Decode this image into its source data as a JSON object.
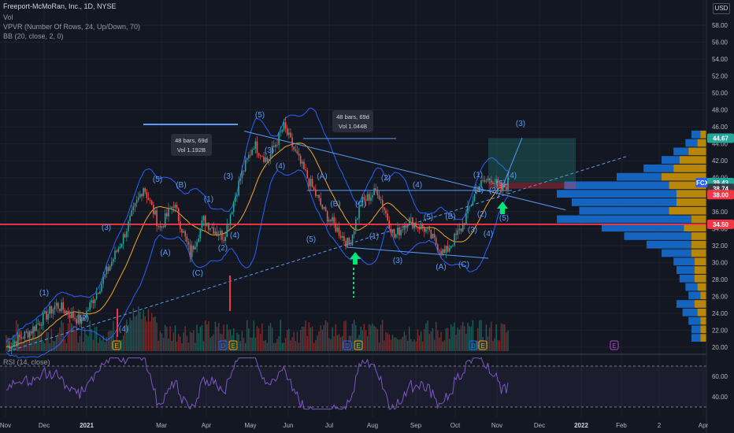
{
  "symbol_title": "Freeport-McMoRan, Inc., 1D, NYSE",
  "indicators": [
    "Vol",
    "VPVR (Number Of Rows, 24, Up/Down, 70)",
    "BB (20, close, 2, 0)"
  ],
  "rsi_label": "RSI (14, close)",
  "currency": "USD",
  "price_axis_ticks": [
    "58.00",
    "56.00",
    "54.00",
    "52.00",
    "50.00",
    "48.00",
    "46.00",
    "44.00",
    "42.00",
    "40.00",
    "38.00",
    "36.00",
    "34.00",
    "32.00",
    "30.00",
    "28.00",
    "26.00",
    "24.00",
    "22.00",
    "20.00"
  ],
  "rsi_axis_ticks": [
    "60.00",
    "40.00"
  ],
  "price_tags": [
    {
      "text": "44.67",
      "color": "#26a69a"
    },
    {
      "text": "FCX",
      "color": "#2962ff"
    },
    {
      "text": "39.43",
      "color": "#26a69a"
    },
    {
      "text": "38.74",
      "color": "#363a45"
    },
    {
      "text": "38.00",
      "color": "#f23645"
    },
    {
      "text": "34.50",
      "color": "#f23645"
    }
  ],
  "time_axis_labels": [
    "Nov",
    "Dec",
    "2021",
    "Mar",
    "Apr",
    "May",
    "Jun",
    "Jul",
    "Aug",
    "Sep",
    "Oct",
    "Nov",
    "Dec",
    "2022",
    "Feb",
    "2",
    "Apr"
  ],
  "wave_labels": [
    "(1)",
    "(2)",
    "(3)",
    "(4)",
    "(5)",
    "(A)",
    "(B)",
    "(C)",
    "(1)",
    "(2)",
    "(3)",
    "(4)",
    "(5)",
    "(3)",
    "(4)",
    "(5)",
    "(A)",
    "(B)",
    "(C)",
    "(1)",
    "(2)",
    "(3)",
    "(4)",
    "(5)",
    "(A)",
    "(B)",
    "(C)",
    "(1)",
    "(2)",
    "(3)",
    "(4)",
    "(5)",
    "(1)",
    "(2)",
    "(3)",
    "(4)",
    "(5)"
  ],
  "measure_boxes": [
    {
      "line1": "48 bars, 69d",
      "line2": "Vol 1.192B"
    },
    {
      "line1": "48 bars, 69d",
      "line2": "Vol 1.044B"
    }
  ],
  "event_markers": [
    "E",
    "D",
    "E",
    "D",
    "E",
    "D",
    "E",
    "E"
  ],
  "colors": {
    "bg": "#131722",
    "up": "#26a69a",
    "down": "#ef5350",
    "bb": "#2962ff",
    "ma": "#f5a623",
    "rsi": "#7e57c2",
    "support": "#f23645",
    "trend": "#5b9cf6"
  }
}
